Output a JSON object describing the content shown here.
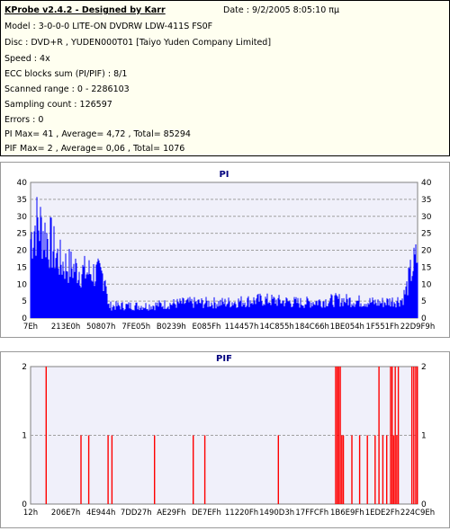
{
  "header": {
    "title": "KProbe v2.4.2 - Designed by Karr",
    "date": "Date : 9/2/2005 8:05:10 πμ"
  },
  "info_lines": [
    "Model : 3-0-0-0 LITE-ON DVDRW LDW-411S   FS0F",
    "Disc : DVD+R , YUDEN000T01 [Taiyo Yuden Company Limited]",
    "Speed : 4x",
    "ECC blocks sum (PI/PIF) : 8/1",
    "Scanned range : 0 - 2286103",
    "Sampling count : 126597",
    "Errors : 0",
    "PI Max= 41 , Average= 4,72 , Total= 85294",
    "PIF Max= 2 , Average= 0,06 , Total= 1076"
  ],
  "colors": {
    "pi": "#0000ff",
    "pif": "#ff0000",
    "plot_bg": "#f0f0fa",
    "grid": "#a0a0a0",
    "title": "#00007f"
  },
  "chart_data": [
    {
      "type": "area",
      "title": "PI",
      "ylim": [
        0,
        40
      ],
      "y_ticks": [
        0,
        5,
        10,
        15,
        20,
        25,
        30,
        35,
        40
      ],
      "x_tick_labels": [
        "7Eh",
        "213E0h",
        "50807h",
        "7FE05h",
        "B0239h",
        "E085Fh",
        "114457h",
        "14C855h",
        "184C66h",
        "1BE054h",
        "1F551Fh",
        "22D9F9h"
      ],
      "profile": [
        [
          0.0,
          26
        ],
        [
          0.01,
          30
        ],
        [
          0.02,
          31
        ],
        [
          0.035,
          28
        ],
        [
          0.05,
          25
        ],
        [
          0.065,
          21
        ],
        [
          0.08,
          18
        ],
        [
          0.1,
          17
        ],
        [
          0.12,
          16
        ],
        [
          0.14,
          15
        ],
        [
          0.16,
          15
        ],
        [
          0.18,
          14
        ],
        [
          0.195,
          14
        ],
        [
          0.2,
          4
        ],
        [
          0.3,
          4
        ],
        [
          0.4,
          5
        ],
        [
          0.5,
          5
        ],
        [
          0.6,
          6
        ],
        [
          0.7,
          5
        ],
        [
          0.8,
          6
        ],
        [
          0.9,
          5
        ],
        [
          0.96,
          6
        ],
        [
          0.97,
          9
        ],
        [
          0.985,
          16
        ],
        [
          1.0,
          20
        ]
      ]
    },
    {
      "type": "bar",
      "title": "PIF",
      "ylim": [
        0,
        2
      ],
      "y_ticks": [
        0,
        1,
        2
      ],
      "x_tick_labels": [
        "12h",
        "206E7h",
        "4E944h",
        "7DD27h",
        "AE29Fh",
        "DE7EFh",
        "11220Fh",
        "1490D3h",
        "17FFCFh",
        "1B6E9Fh",
        "1EDE2Fh",
        "224C9Eh"
      ],
      "bars": [
        [
          0.04,
          2
        ],
        [
          0.13,
          1
        ],
        [
          0.15,
          1
        ],
        [
          0.2,
          1
        ],
        [
          0.21,
          1
        ],
        [
          0.32,
          1
        ],
        [
          0.42,
          1
        ],
        [
          0.45,
          1
        ],
        [
          0.64,
          1
        ],
        [
          0.788,
          2
        ],
        [
          0.792,
          2
        ],
        [
          0.796,
          2
        ],
        [
          0.8,
          2
        ],
        [
          0.804,
          1
        ],
        [
          0.808,
          1
        ],
        [
          0.83,
          1
        ],
        [
          0.85,
          1
        ],
        [
          0.87,
          1
        ],
        [
          0.89,
          1
        ],
        [
          0.9,
          2
        ],
        [
          0.91,
          1
        ],
        [
          0.92,
          1
        ],
        [
          0.93,
          2
        ],
        [
          0.934,
          2
        ],
        [
          0.938,
          1
        ],
        [
          0.942,
          2
        ],
        [
          0.946,
          1
        ],
        [
          0.95,
          2
        ],
        [
          0.985,
          2
        ],
        [
          0.99,
          2
        ],
        [
          0.995,
          2
        ],
        [
          0.999,
          2
        ]
      ]
    }
  ]
}
